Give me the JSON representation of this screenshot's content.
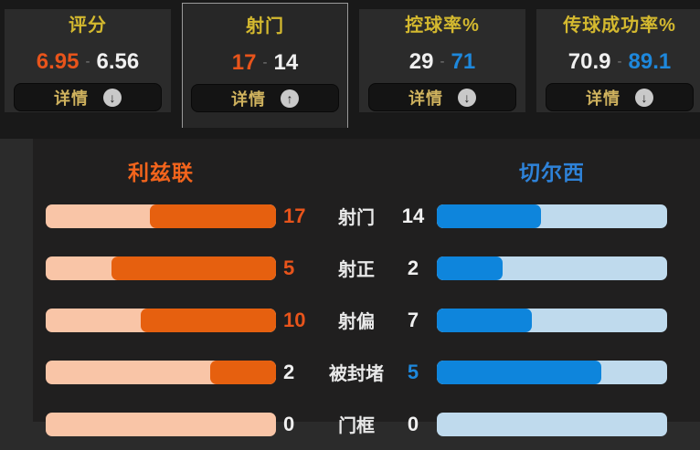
{
  "value_separator": "-",
  "colors": {
    "home_accent": "#e8541b",
    "away_accent": "#1e88dc",
    "neutral_value": "#f0f0f0",
    "home_bar_fill": "#e6600f",
    "home_bar_track": "#f9c5a7",
    "away_bar_fill": "#0e85dc",
    "away_bar_track": "#bfdaed",
    "tab_title": "#d4b92f",
    "detail_label": "#cfb25e",
    "home_header": "#f2641c",
    "away_header": "#2e82d8"
  },
  "tabs": [
    {
      "title": "评分",
      "home_value": "6.95",
      "away_value": "6.56",
      "leader": "home",
      "selected": false,
      "detail_label": "详情",
      "arrow": "down"
    },
    {
      "title": "射门",
      "home_value": "17",
      "away_value": "14",
      "leader": "home",
      "selected": true,
      "detail_label": "详情",
      "arrow": "up"
    },
    {
      "title": "控球率%",
      "home_value": "29",
      "away_value": "71",
      "leader": "away",
      "selected": false,
      "detail_label": "详情",
      "arrow": "down"
    },
    {
      "title": "传球成功率%",
      "home_value": "70.9",
      "away_value": "89.1",
      "leader": "away",
      "selected": false,
      "detail_label": "详情",
      "arrow": "down"
    }
  ],
  "comparison": {
    "home_team": "利兹联",
    "away_team": "切尔西",
    "rows": [
      {
        "label": "射门",
        "home": 17,
        "away": 14
      },
      {
        "label": "射正",
        "home": 5,
        "away": 2
      },
      {
        "label": "射偏",
        "home": 10,
        "away": 7
      },
      {
        "label": "被封堵",
        "home": 2,
        "away": 5
      },
      {
        "label": "门框",
        "home": 0,
        "away": 0
      }
    ]
  },
  "chart_data": {
    "type": "bar",
    "categories": [
      "射门",
      "射正",
      "射偏",
      "被封堵",
      "门框"
    ],
    "series": [
      {
        "name": "利兹联",
        "values": [
          17,
          5,
          10,
          2,
          0
        ]
      },
      {
        "name": "切尔西",
        "values": [
          14,
          2,
          7,
          5,
          0
        ]
      }
    ],
    "layout": "horizontal-mirrored",
    "summary_tabs": [
      {
        "label": "评分",
        "home": 6.95,
        "away": 6.56
      },
      {
        "label": "射门",
        "home": 17,
        "away": 14
      },
      {
        "label": "控球率%",
        "home": 29,
        "away": 71
      },
      {
        "label": "传球成功率%",
        "home": 70.9,
        "away": 89.1
      }
    ]
  }
}
